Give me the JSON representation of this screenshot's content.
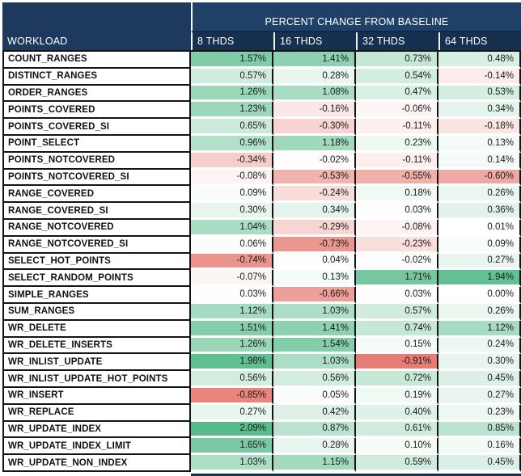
{
  "chart_data": {
    "type": "heatmap",
    "title": "PERCENT CHANGE FROM BASELINE",
    "row_header": "WORKLOAD",
    "columns": [
      "8 THDS",
      "16 THDS",
      "32 THDS",
      "64 THDS"
    ],
    "value_format": "percent_two_decimals",
    "rows": [
      {
        "name": "COUNT_RANGES",
        "values": [
          1.57,
          1.41,
          0.73,
          0.48
        ]
      },
      {
        "name": "DISTINCT_RANGES",
        "values": [
          0.57,
          0.28,
          0.54,
          -0.14
        ]
      },
      {
        "name": "ORDER_RANGES",
        "values": [
          1.26,
          1.08,
          0.47,
          0.53
        ]
      },
      {
        "name": "POINTS_COVERED",
        "values": [
          1.23,
          -0.16,
          -0.06,
          0.34
        ]
      },
      {
        "name": "POINTS_COVERED_SI",
        "values": [
          0.65,
          -0.3,
          -0.11,
          -0.18
        ]
      },
      {
        "name": "POINT_SELECT",
        "values": [
          0.96,
          1.18,
          0.23,
          0.13
        ]
      },
      {
        "name": "POINTS_NOTCOVERED",
        "values": [
          -0.34,
          -0.02,
          -0.11,
          0.14
        ]
      },
      {
        "name": "POINTS_NOTCOVERED_SI",
        "values": [
          -0.08,
          -0.53,
          -0.55,
          -0.6
        ]
      },
      {
        "name": "RANGE_COVERED",
        "values": [
          0.09,
          -0.24,
          0.18,
          0.26
        ]
      },
      {
        "name": "RANGE_COVERED_SI",
        "values": [
          0.3,
          0.34,
          0.03,
          0.36
        ]
      },
      {
        "name": "RANGE_NOTCOVERED",
        "values": [
          1.04,
          -0.29,
          -0.08,
          0.01
        ]
      },
      {
        "name": "RANGE_NOTCOVERED_SI",
        "values": [
          0.06,
          -0.73,
          -0.23,
          0.09
        ]
      },
      {
        "name": "SELECT_HOT_POINTS",
        "values": [
          -0.74,
          0.04,
          -0.02,
          0.27
        ]
      },
      {
        "name": "SELECT_RANDOM_POINTS",
        "values": [
          -0.07,
          0.13,
          1.71,
          1.94
        ]
      },
      {
        "name": "SIMPLE_RANGES",
        "values": [
          0.03,
          -0.66,
          0.03,
          0.0
        ]
      },
      {
        "name": "SUM_RANGES",
        "values": [
          1.12,
          1.03,
          0.57,
          0.26
        ]
      },
      {
        "name": "WR_DELETE",
        "values": [
          1.51,
          1.41,
          0.74,
          1.12
        ]
      },
      {
        "name": "WR_DELETE_INSERTS",
        "values": [
          1.26,
          1.54,
          0.15,
          0.24
        ]
      },
      {
        "name": "WR_INLIST_UPDATE",
        "values": [
          1.98,
          1.03,
          -0.91,
          0.3
        ]
      },
      {
        "name": "WR_INLIST_UPDATE_HOT_POINTS",
        "values": [
          0.56,
          0.56,
          0.72,
          0.45
        ]
      },
      {
        "name": "WR_INSERT",
        "values": [
          -0.85,
          0.05,
          0.19,
          0.27
        ]
      },
      {
        "name": "WR_REPLACE",
        "values": [
          0.27,
          0.42,
          0.4,
          0.23
        ]
      },
      {
        "name": "WR_UPDATE_INDEX",
        "values": [
          2.09,
          0.87,
          0.61,
          0.85
        ]
      },
      {
        "name": "WR_UPDATE_INDEX_LIMIT",
        "values": [
          1.65,
          0.28,
          0.1,
          0.16
        ]
      },
      {
        "name": "WR_UPDATE_NON_INDEX",
        "values": [
          1.03,
          1.15,
          0.59,
          0.45
        ]
      }
    ],
    "color_scale": {
      "min_value": -0.91,
      "mid_value": 0,
      "max_value": 2.09,
      "min_color": "#E67C73",
      "mid_color": "#FFFFFF",
      "max_color": "#57BB8A"
    },
    "colors": {
      "header_bg": "#1D3A5E",
      "title_band_bg": "#1F4168",
      "subheader_bg": "#16304F",
      "header_text": "#FFFFFF",
      "grid_line": "#141414"
    }
  }
}
